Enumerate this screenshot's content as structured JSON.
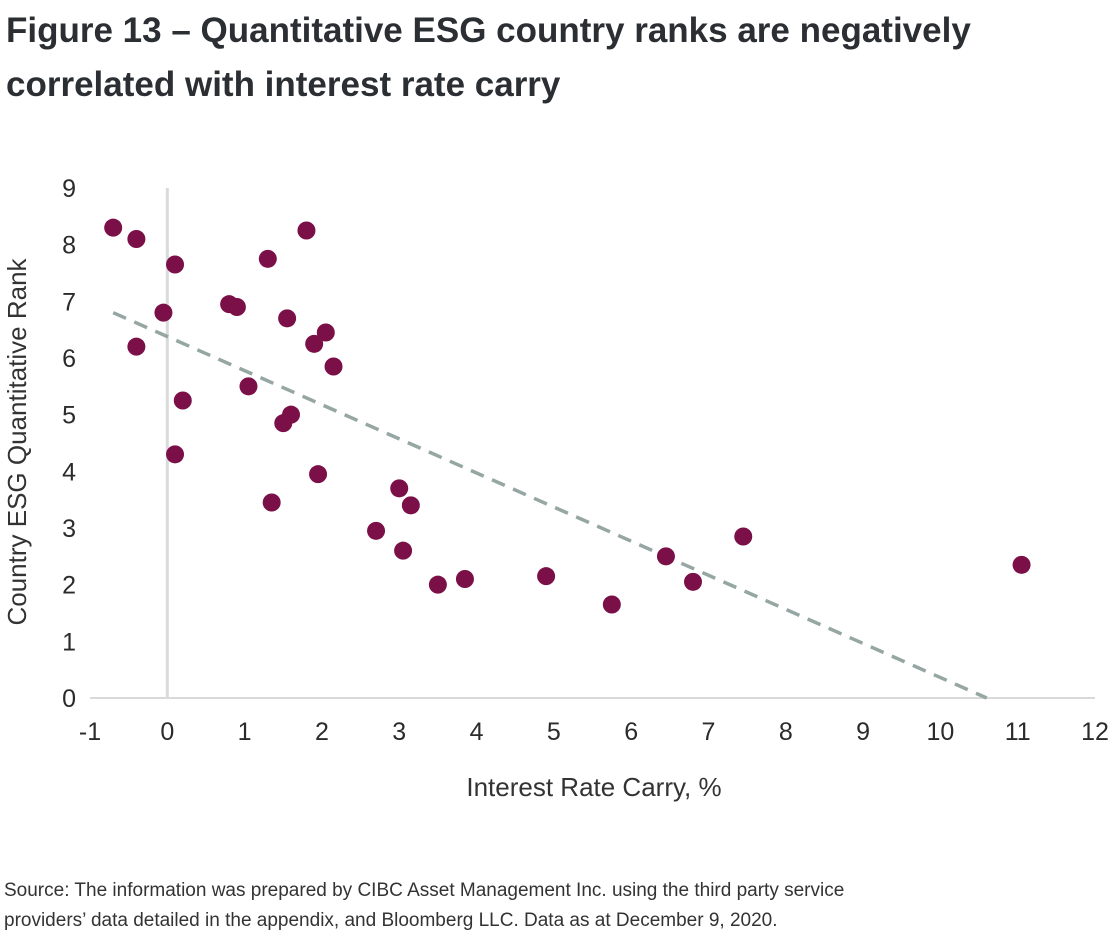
{
  "title_line1": "Figure 13 – Quantitative ESG country ranks are negatively",
  "title_line2": "correlated with interest rate carry",
  "source_line1": "Source: The information was prepared by CIBC Asset Management Inc. using the third party service",
  "source_line2": "providers’ data detailed in the appendix, and Bloomberg LLC. Data as at December 9, 2020.",
  "chart_data": {
    "type": "scatter",
    "title": "Figure 13 – Quantitative ESG country ranks are negatively correlated with interest rate carry",
    "xlabel": "Interest Rate Carry, %",
    "ylabel": "Country ESG Quantitative Rank",
    "xlim": [
      -1,
      12
    ],
    "ylim": [
      0,
      9
    ],
    "x_ticks": [
      "-1",
      "0",
      "1",
      "2",
      "3",
      "4",
      "5",
      "6",
      "7",
      "8",
      "9",
      "10",
      "11",
      "12"
    ],
    "y_ticks": [
      "0",
      "1",
      "2",
      "3",
      "4",
      "5",
      "6",
      "7",
      "8",
      "9"
    ],
    "grid": false,
    "legend": "none",
    "marker_color": "#7b0f47",
    "trendline_color": "#95a6a3",
    "vertical_reference_x": 0,
    "trendline": {
      "style": "dashed",
      "from": [
        -0.7,
        6.8
      ],
      "to": [
        10.6,
        0.0
      ]
    },
    "points": [
      {
        "x": -0.7,
        "y": 8.3
      },
      {
        "x": -0.4,
        "y": 8.1
      },
      {
        "x": -0.4,
        "y": 6.2
      },
      {
        "x": -0.05,
        "y": 6.8
      },
      {
        "x": 0.1,
        "y": 7.65
      },
      {
        "x": 0.1,
        "y": 4.3
      },
      {
        "x": 0.2,
        "y": 5.25
      },
      {
        "x": 0.8,
        "y": 6.95
      },
      {
        "x": 0.9,
        "y": 6.9
      },
      {
        "x": 1.05,
        "y": 5.5
      },
      {
        "x": 1.3,
        "y": 7.75
      },
      {
        "x": 1.35,
        "y": 3.45
      },
      {
        "x": 1.5,
        "y": 4.85
      },
      {
        "x": 1.55,
        "y": 6.7
      },
      {
        "x": 1.6,
        "y": 5.0
      },
      {
        "x": 1.8,
        "y": 8.25
      },
      {
        "x": 1.9,
        "y": 6.25
      },
      {
        "x": 1.95,
        "y": 3.95
      },
      {
        "x": 2.05,
        "y": 6.45
      },
      {
        "x": 2.15,
        "y": 5.85
      },
      {
        "x": 2.7,
        "y": 2.95
      },
      {
        "x": 3.0,
        "y": 3.7
      },
      {
        "x": 3.05,
        "y": 2.6
      },
      {
        "x": 3.15,
        "y": 3.4
      },
      {
        "x": 3.5,
        "y": 2.0
      },
      {
        "x": 3.85,
        "y": 2.1
      },
      {
        "x": 4.9,
        "y": 2.15
      },
      {
        "x": 5.75,
        "y": 1.65
      },
      {
        "x": 6.45,
        "y": 2.5
      },
      {
        "x": 6.8,
        "y": 2.05
      },
      {
        "x": 7.45,
        "y": 2.85
      },
      {
        "x": 11.05,
        "y": 2.35
      }
    ]
  }
}
